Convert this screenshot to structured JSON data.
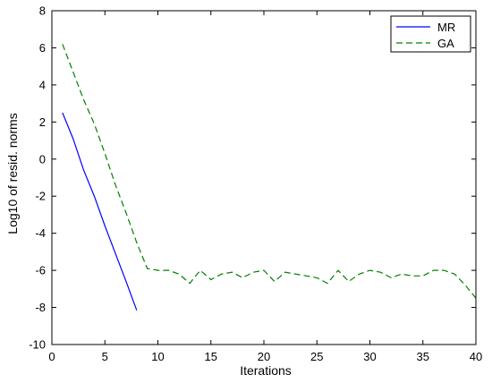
{
  "chart_data": {
    "type": "line",
    "title": "",
    "xlabel": "Iterations",
    "ylabel": "Log10 of resid. norms",
    "xlim": [
      0,
      40
    ],
    "ylim": [
      -10,
      8
    ],
    "xticks": [
      0,
      5,
      10,
      15,
      20,
      25,
      30,
      35,
      40
    ],
    "yticks": [
      -10,
      -8,
      -6,
      -4,
      -2,
      0,
      2,
      4,
      6,
      8
    ],
    "grid": false,
    "legend_position": "top-right",
    "series": [
      {
        "name": "MR",
        "color": "#0000ff",
        "dash": "solid",
        "x": [
          1,
          2,
          3,
          4,
          5,
          6,
          7,
          8
        ],
        "y": [
          2.5,
          1.1,
          -0.6,
          -2.0,
          -3.6,
          -5.1,
          -6.6,
          -8.15
        ]
      },
      {
        "name": "GA",
        "color": "#008000",
        "dash": "dashed",
        "x": [
          1,
          2,
          3,
          4,
          5,
          6,
          7,
          8,
          9,
          10,
          11,
          12,
          13,
          14,
          15,
          16,
          17,
          18,
          19,
          20,
          21,
          22,
          23,
          24,
          25,
          26,
          27,
          28,
          29,
          30,
          31,
          32,
          33,
          34,
          35,
          36,
          37,
          38,
          39,
          40
        ],
        "y": [
          6.2,
          4.7,
          3.2,
          1.9,
          0.3,
          -1.4,
          -2.9,
          -4.5,
          -5.9,
          -6.0,
          -6.0,
          -6.2,
          -6.7,
          -6.0,
          -6.5,
          -6.2,
          -6.1,
          -6.4,
          -6.1,
          -6.0,
          -6.6,
          -6.1,
          -6.2,
          -6.3,
          -6.4,
          -6.7,
          -6.0,
          -6.6,
          -6.2,
          -6.0,
          -6.1,
          -6.4,
          -6.2,
          -6.3,
          -6.3,
          -6.0,
          -6.0,
          -6.2,
          -6.8,
          -7.5
        ]
      }
    ]
  }
}
